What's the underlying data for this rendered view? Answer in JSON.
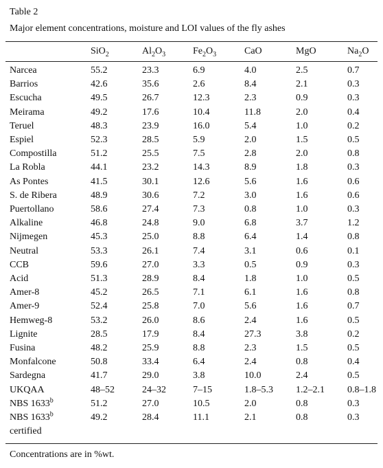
{
  "title": "Table 2",
  "caption": "Major element concentrations, moisture and LOI values of the fly ashes",
  "table": {
    "columns": [
      [
        "SiO",
        "2"
      ],
      [
        "Al",
        "2",
        "O",
        "3"
      ],
      [
        "Fe",
        "2",
        "O",
        "3"
      ],
      [
        "CaO"
      ],
      [
        "MgO"
      ],
      [
        "Na",
        "2",
        "O"
      ]
    ],
    "rows": [
      {
        "label": "Narcea",
        "values": [
          "55.2",
          "23.3",
          "6.9",
          "4.0",
          "2.5",
          "0.7"
        ]
      },
      {
        "label": "Barrios",
        "values": [
          "42.6",
          "35.6",
          "2.6",
          "8.4",
          "2.1",
          "0.3"
        ]
      },
      {
        "label": "Escucha",
        "values": [
          "49.5",
          "26.7",
          "12.3",
          "2.3",
          "0.9",
          "0.3"
        ]
      },
      {
        "label": "Meirama",
        "values": [
          "49.2",
          "17.6",
          "10.4",
          "11.8",
          "2.0",
          "0.4"
        ]
      },
      {
        "label": "Teruel",
        "values": [
          "48.3",
          "23.9",
          "16.0",
          "5.4",
          "1.0",
          "0.2"
        ]
      },
      {
        "label": "Espiel",
        "values": [
          "52.3",
          "28.5",
          "5.9",
          "2.0",
          "1.5",
          "0.5"
        ]
      },
      {
        "label": "Compostilla",
        "values": [
          "51.2",
          "25.5",
          "7.5",
          "2.8",
          "2.0",
          "0.8"
        ]
      },
      {
        "label": "La Robla",
        "values": [
          "44.1",
          "23.2",
          "14.3",
          "8.9",
          "1.8",
          "0.3"
        ]
      },
      {
        "label": "As Pontes",
        "values": [
          "41.5",
          "30.1",
          "12.6",
          "5.6",
          "1.6",
          "0.6"
        ]
      },
      {
        "label": "S. de Ribera",
        "values": [
          "48.9",
          "30.6",
          "7.2",
          "3.0",
          "1.6",
          "0.6"
        ]
      },
      {
        "label": "Puertollano",
        "values": [
          "58.6",
          "27.4",
          "7.3",
          "0.8",
          "1.0",
          "0.3"
        ]
      },
      {
        "label": "Alkaline",
        "values": [
          "46.8",
          "24.8",
          "9.0",
          "6.8",
          "3.7",
          "1.2"
        ]
      },
      {
        "label": "Nijmegen",
        "values": [
          "45.3",
          "25.0",
          "8.8",
          "6.4",
          "1.4",
          "0.8"
        ]
      },
      {
        "label": "Neutral",
        "values": [
          "53.3",
          "26.1",
          "7.4",
          "3.1",
          "0.6",
          "0.1"
        ]
      },
      {
        "label": "CCB",
        "values": [
          "59.6",
          "27.0",
          "3.3",
          "0.5",
          "0.9",
          "0.3"
        ]
      },
      {
        "label": "Acid",
        "values": [
          "51.3",
          "28.9",
          "8.4",
          "1.8",
          "1.0",
          "0.5"
        ]
      },
      {
        "label": "Amer-8",
        "values": [
          "45.2",
          "26.5",
          "7.1",
          "6.1",
          "1.6",
          "0.8"
        ]
      },
      {
        "label": "Amer-9",
        "values": [
          "52.4",
          "25.8",
          "7.0",
          "5.6",
          "1.6",
          "0.7"
        ]
      },
      {
        "label": "Hemweg-8",
        "values": [
          "53.2",
          "26.0",
          "8.6",
          "2.4",
          "1.6",
          "0.5"
        ]
      },
      {
        "label": "Lignite",
        "values": [
          "28.5",
          "17.9",
          "8.4",
          "27.3",
          "3.8",
          "0.2"
        ]
      },
      {
        "label": "Fusina",
        "values": [
          "48.2",
          "25.9",
          "8.8",
          "2.3",
          "1.5",
          "0.5"
        ]
      },
      {
        "label": "Monfalcone",
        "values": [
          "50.8",
          "33.4",
          "6.4",
          "2.4",
          "0.8",
          "0.4"
        ]
      },
      {
        "label": "Sardegna",
        "values": [
          "41.7",
          "29.0",
          "3.8",
          "10.0",
          "2.4",
          "0.5"
        ]
      },
      {
        "label": "UKQAA",
        "values": [
          "48–52",
          "24–32",
          "7–15",
          "1.8–5.3",
          "1.2–2.1",
          "0.8–1.8"
        ]
      },
      {
        "label": "NBS 1633",
        "label_sup": "b",
        "values": [
          "51.2",
          "27.0",
          "10.5",
          "2.0",
          "0.8",
          "0.3"
        ]
      },
      {
        "label": "NBS 1633",
        "label_sup": "b",
        "label_line2": "certified",
        "values": [
          "49.2",
          "28.4",
          "11.1",
          "2.1",
          "0.8",
          "0.3"
        ]
      }
    ]
  },
  "footnote": "Concentrations are in %wt."
}
